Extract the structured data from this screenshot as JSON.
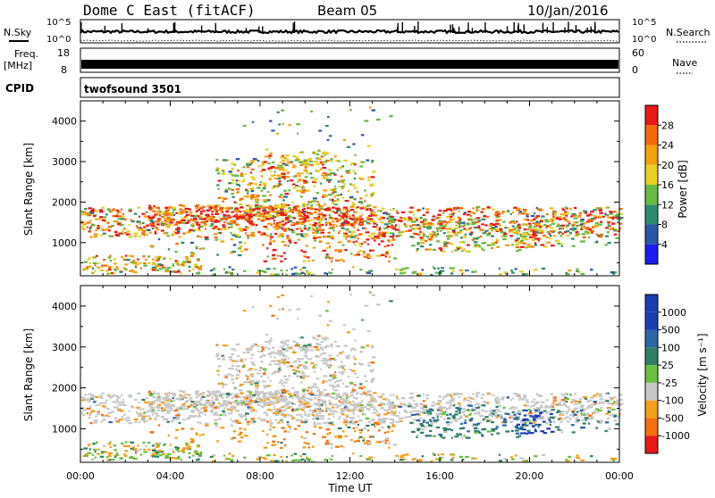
{
  "header": {
    "station": "Dome C East (fitACF)",
    "beam": "Beam 05",
    "date": "10/Jan/2016"
  },
  "strips": {
    "nsky": {
      "label": "N.Sky",
      "ticks": [
        "10^5",
        "10^0"
      ]
    },
    "nsearch": {
      "label": "N.Search",
      "ticks": [
        "10^5",
        "10^0"
      ]
    },
    "freq": {
      "label_top": "Freq.",
      "label_unit": "[MHz]",
      "ticks": [
        "18",
        "8"
      ]
    },
    "nave": {
      "label": "Nave",
      "ticks": [
        "60",
        "0"
      ]
    },
    "cpid": {
      "label": "CPID",
      "value": "twofsound 3501"
    }
  },
  "chart_data": [
    {
      "type": "heatmap",
      "name": "power-panel",
      "ylabel": "Slant Range [km]",
      "xlabel": "",
      "xlim": [
        "00:00",
        "24:00"
      ],
      "ylim": [
        180,
        4500
      ],
      "y_ticks": [
        1000,
        2000,
        3000,
        4000
      ],
      "colorbar": {
        "label": "Power [dB]",
        "tick_labels": [
          "4",
          "8",
          "12",
          "16",
          "20",
          "24",
          "28"
        ],
        "colors": [
          "#1c1cf0",
          "#2b56a8",
          "#2e8b6e",
          "#66bb44",
          "#e8d020",
          "#f4a10c",
          "#f46a0a",
          "#e81818"
        ]
      }
    },
    {
      "type": "heatmap",
      "name": "velocity-panel",
      "ylabel": "Slant Range [km]",
      "xlabel": "Time UT",
      "xlim": [
        "00:00",
        "24:00"
      ],
      "ylim": [
        180,
        4500
      ],
      "y_ticks": [
        1000,
        2000,
        3000,
        4000
      ],
      "x_tick_labels": [
        "00:00",
        "04:00",
        "08:00",
        "12:00",
        "16:00",
        "20:00",
        "00:00"
      ],
      "colorbar": {
        "label": "Velocity [m s⁻¹]",
        "tick_labels": [
          "1000",
          "500",
          "100",
          "25",
          "-25",
          "-100",
          "-500",
          "-1000"
        ],
        "colors": [
          "#1c3cb4",
          "#2c66a8",
          "#2e8064",
          "#6ac040",
          "#c8c8c8",
          "#f4a018",
          "#f47010",
          "#e81818"
        ]
      }
    }
  ],
  "colors": {
    "ground_scatter": "#c8c8c8",
    "frame": "#000000"
  }
}
